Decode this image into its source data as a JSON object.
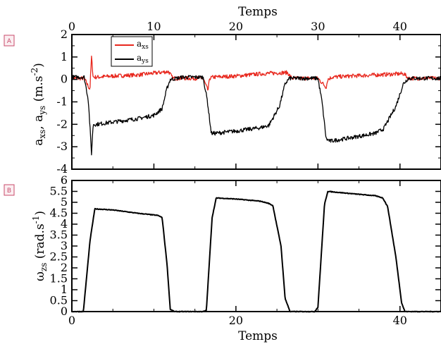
{
  "chart_data": [
    {
      "type": "line",
      "panel_mark": "A",
      "top_xlabel": "Temps",
      "ylabel": "a_xs, a_ys (m.s^-2)",
      "xlim": [
        0,
        45
      ],
      "ylim": [
        -4,
        2
      ],
      "xticks": [
        0,
        10,
        20,
        30,
        40
      ],
      "yticks": [
        -4,
        -3,
        -2,
        -1,
        0,
        1,
        2
      ],
      "grid": false,
      "legend_position": "top-left",
      "series": [
        {
          "name": "a_xs",
          "color": "#e8281e",
          "x": [
            0,
            1.5,
            2.2,
            2.4,
            2.6,
            3.0,
            5.0,
            8.0,
            10.5,
            11.8,
            12.3,
            16.0,
            16.6,
            16.8,
            17.2,
            20.0,
            23.0,
            25.5,
            26.3,
            26.8,
            30.0,
            31.0,
            31.2,
            31.7,
            34.0,
            37.0,
            40.0,
            40.5,
            41.0,
            45.0
          ],
          "y": [
            0.05,
            0.05,
            -0.45,
            1.0,
            0.1,
            0.1,
            0.15,
            0.2,
            0.3,
            0.35,
            0.05,
            0.05,
            -0.5,
            0.05,
            0.1,
            0.15,
            0.25,
            0.3,
            0.3,
            0.05,
            0.05,
            -0.35,
            0.0,
            0.1,
            0.15,
            0.2,
            0.25,
            0.25,
            0.05,
            0.05
          ]
        },
        {
          "name": "a_ys",
          "color": "#000000",
          "x": [
            0,
            1.5,
            2.0,
            2.4,
            2.6,
            3.0,
            5.0,
            8.0,
            10.0,
            11.0,
            11.6,
            12.0,
            13.5,
            16.0,
            16.5,
            17.0,
            17.5,
            20.0,
            23.0,
            24.0,
            25.3,
            26.0,
            26.5,
            30.0,
            30.5,
            31.0,
            31.5,
            34.0,
            37.0,
            38.0,
            39.5,
            40.4,
            41.0,
            45.0
          ],
          "y": [
            0.1,
            0.1,
            -0.9,
            -3.3,
            -2.0,
            -2.0,
            -1.9,
            -1.75,
            -1.6,
            -1.3,
            -0.4,
            0.0,
            0.1,
            0.1,
            -0.9,
            -2.4,
            -2.4,
            -2.3,
            -2.15,
            -2.05,
            -1.2,
            -0.2,
            0.05,
            0.05,
            -1.0,
            -2.65,
            -2.75,
            -2.6,
            -2.4,
            -2.2,
            -1.2,
            -0.2,
            0.05,
            0.05
          ]
        }
      ]
    },
    {
      "type": "line",
      "panel_mark": "B",
      "xlabel": "Temps",
      "ylabel": "ω_zs (rad.s^-1)",
      "xlim": [
        0,
        45
      ],
      "ylim": [
        0,
        6
      ],
      "xticks": [
        0,
        20,
        40
      ],
      "yticks": [
        0,
        0.5,
        1,
        1.5,
        2,
        2.5,
        3,
        3.5,
        4,
        4.5,
        5,
        5.5,
        6
      ],
      "grid": false,
      "series": [
        {
          "color": "#000000",
          "x": [
            0,
            1.0,
            1.4,
            2.2,
            2.8,
            5.0,
            8.0,
            10.5,
            11.0,
            11.6,
            12.0,
            12.5,
            16.0,
            16.4,
            17.1,
            17.6,
            20.0,
            23.0,
            24.0,
            24.5,
            25.5,
            26.0,
            26.6,
            29.6,
            30.0,
            30.8,
            31.2,
            34.0,
            37.0,
            37.9,
            38.5,
            39.5,
            40.2,
            40.6,
            45.0
          ],
          "y": [
            0.0,
            0.0,
            0.0,
            3.2,
            4.7,
            4.65,
            4.5,
            4.4,
            4.3,
            2.2,
            0.1,
            0.0,
            0.0,
            0.05,
            4.3,
            5.2,
            5.15,
            5.05,
            4.95,
            4.85,
            3.0,
            0.6,
            0.0,
            0.0,
            0.2,
            4.9,
            5.5,
            5.4,
            5.3,
            5.2,
            4.8,
            2.5,
            0.4,
            0.0,
            0.0
          ]
        }
      ]
    }
  ]
}
